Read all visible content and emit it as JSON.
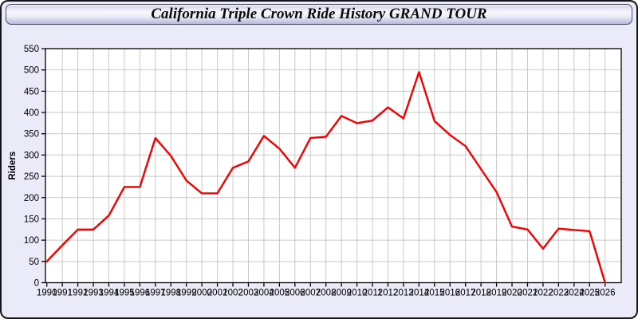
{
  "window": {
    "title": "California Triple Crown Ride History GRAND TOUR"
  },
  "colors": {
    "page_background": "#eaeaf8",
    "window_border": "#15151f",
    "titlebar_gradient_top": "#cfcfe9",
    "titlebar_gradient_mid": "#f7f7fe",
    "titlebar_gradient_bottom": "#b7b7dc",
    "plot_background": "#ffffff",
    "grid": "#c9c9c9",
    "axis": "#000000",
    "tick_label": "#000000",
    "line": "#f40000"
  },
  "chart_data": {
    "type": "line",
    "title": "California Triple Crown Ride History GRAND TOUR",
    "xlabel": "",
    "ylabel": "Riders",
    "ylim": [
      0,
      550
    ],
    "ytick_step": 50,
    "grid": true,
    "legend": "none",
    "x": [
      1990,
      1991,
      1992,
      1993,
      1994,
      1995,
      1996,
      1997,
      1998,
      1999,
      2000,
      2001,
      2002,
      2003,
      2004,
      2005,
      2006,
      2007,
      2008,
      2009,
      2010,
      2011,
      2012,
      2013,
      2014,
      2015,
      2016,
      2017,
      2018,
      2019,
      2020,
      2021,
      2022,
      2023,
      2024,
      2025,
      2026
    ],
    "series": [
      {
        "name": "Riders",
        "color": "#f40000",
        "values": [
          50,
          88,
          125,
          125,
          158,
          225,
          225,
          340,
          298,
          240,
          210,
          210,
          270,
          285,
          345,
          315,
          270,
          340,
          343,
          392,
          375,
          381,
          412,
          386,
          495,
          380,
          347,
          321,
          267,
          213,
          132,
          125,
          80,
          127,
          124,
          121,
          0
        ]
      }
    ]
  }
}
